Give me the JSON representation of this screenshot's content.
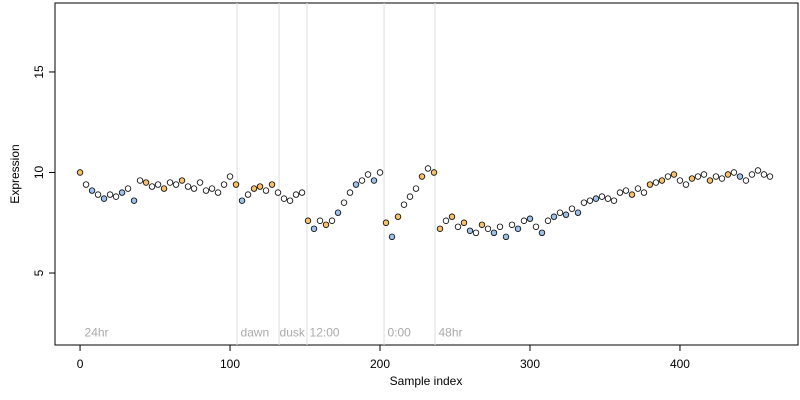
{
  "chart_data": {
    "type": "scatter",
    "x_label": "Sample index",
    "y_label": "Expression",
    "xlim": [
      -16.7,
      478.7
    ],
    "ylim": [
      1.42,
      18.43
    ],
    "xticks": [
      0,
      100,
      200,
      300,
      400
    ],
    "yticks": [
      5,
      10,
      15
    ],
    "vlines": [
      104.7,
      132.7,
      151.3,
      202.7,
      236.7
    ],
    "vline_color": "#dddddd",
    "annotation_y": 2.0,
    "annotations": [
      {
        "x": 3,
        "text": "24hr"
      },
      {
        "x": 107,
        "text": "dawn"
      },
      {
        "x": 133,
        "text": "dusk"
      },
      {
        "x": 153,
        "text": "12:00"
      },
      {
        "x": 205,
        "text": "0:00"
      },
      {
        "x": 239,
        "text": "48hr"
      }
    ],
    "x": [
      0,
      4,
      8,
      12,
      16,
      20,
      24,
      28,
      32,
      36,
      40,
      44,
      48,
      52,
      56,
      60,
      64,
      68,
      72,
      76,
      80,
      84,
      88,
      92,
      96,
      100,
      104,
      108,
      112,
      116,
      120,
      124,
      128,
      132,
      136,
      140,
      144,
      148,
      152,
      156,
      160,
      164,
      168,
      172,
      176,
      180,
      184,
      188,
      192,
      196,
      200,
      204,
      208,
      212,
      216,
      220,
      224,
      228,
      232,
      236,
      240,
      244,
      248,
      252,
      256,
      260,
      264,
      268,
      272,
      276,
      280,
      284,
      288,
      292,
      296,
      300,
      304,
      308,
      312,
      316,
      320,
      324,
      328,
      332,
      336,
      340,
      344,
      348,
      352,
      356,
      360,
      364,
      368,
      372,
      376,
      380,
      384,
      388,
      392,
      396,
      400,
      404,
      408,
      412,
      416,
      420,
      424,
      428,
      432,
      436,
      440,
      444,
      448,
      452,
      456,
      460
    ],
    "values": [
      10.0,
      9.4,
      9.1,
      8.9,
      8.7,
      8.9,
      8.8,
      9.0,
      9.2,
      8.6,
      9.6,
      9.5,
      9.3,
      9.4,
      9.2,
      9.5,
      9.4,
      9.6,
      9.3,
      9.2,
      9.5,
      9.1,
      9.2,
      9.0,
      9.4,
      9.8,
      9.4,
      8.6,
      8.9,
      9.2,
      9.3,
      9.1,
      9.4,
      9.0,
      8.7,
      8.6,
      8.9,
      9.0,
      7.6,
      7.2,
      7.6,
      7.4,
      7.6,
      8.0,
      8.5,
      9.0,
      9.4,
      9.6,
      9.9,
      9.6,
      10.0,
      7.5,
      6.8,
      7.8,
      8.4,
      8.8,
      9.2,
      9.8,
      10.2,
      10.0,
      7.2,
      7.6,
      7.8,
      7.3,
      7.5,
      7.1,
      7.0,
      7.4,
      7.2,
      7.0,
      7.3,
      6.8,
      7.4,
      7.2,
      7.6,
      7.7,
      7.3,
      7.0,
      7.6,
      7.8,
      8.0,
      7.9,
      8.2,
      8.0,
      8.5,
      8.6,
      8.7,
      8.8,
      8.7,
      8.6,
      9.0,
      9.1,
      8.9,
      9.2,
      9.0,
      9.4,
      9.5,
      9.6,
      9.8,
      9.9,
      9.6,
      9.4,
      9.7,
      9.8,
      9.9,
      9.6,
      9.8,
      9.7,
      9.9,
      10.0,
      9.8,
      9.6,
      9.9,
      10.1,
      9.9,
      9.8
    ],
    "point_colors": [
      "#f7c06a",
      "#ffffff",
      "#9ec1e8",
      "#ffffff",
      "#9ec1e8",
      "#ffffff",
      "#ffffff",
      "#9ec1e8",
      "#ffffff",
      "#9ec1e8",
      "#ffffff",
      "#f7c06a",
      "#ffffff",
      "#ffffff",
      "#f7c06a",
      "#ffffff",
      "#ffffff",
      "#f7c06a",
      "#ffffff",
      "#ffffff",
      "#ffffff",
      "#ffffff",
      "#ffffff",
      "#ffffff",
      "#ffffff",
      "#ffffff",
      "#f7c06a",
      "#9ec1e8",
      "#ffffff",
      "#f7c06a",
      "#f7c06a",
      "#ffffff",
      "#f7c06a",
      "#ffffff",
      "#ffffff",
      "#ffffff",
      "#ffffff",
      "#ffffff",
      "#f7c06a",
      "#9ec1e8",
      "#ffffff",
      "#f7c06a",
      "#ffffff",
      "#9ec1e8",
      "#ffffff",
      "#ffffff",
      "#9ec1e8",
      "#ffffff",
      "#ffffff",
      "#9ec1e8",
      "#ffffff",
      "#f7c06a",
      "#9ec1e8",
      "#f7c06a",
      "#ffffff",
      "#ffffff",
      "#ffffff",
      "#f7c06a",
      "#ffffff",
      "#f7c06a",
      "#f7c06a",
      "#ffffff",
      "#f7c06a",
      "#ffffff",
      "#f7c06a",
      "#9ec1e8",
      "#ffffff",
      "#f7c06a",
      "#ffffff",
      "#9ec1e8",
      "#ffffff",
      "#9ec1e8",
      "#ffffff",
      "#9ec1e8",
      "#ffffff",
      "#9ec1e8",
      "#ffffff",
      "#9ec1e8",
      "#ffffff",
      "#9ec1e8",
      "#ffffff",
      "#9ec1e8",
      "#ffffff",
      "#9ec1e8",
      "#ffffff",
      "#ffffff",
      "#9ec1e8",
      "#ffffff",
      "#ffffff",
      "#ffffff",
      "#ffffff",
      "#ffffff",
      "#f7c06a",
      "#ffffff",
      "#ffffff",
      "#f7c06a",
      "#ffffff",
      "#f7c06a",
      "#ffffff",
      "#f7c06a",
      "#ffffff",
      "#ffffff",
      "#f7c06a",
      "#ffffff",
      "#ffffff",
      "#f7c06a",
      "#ffffff",
      "#ffffff",
      "#f7c06a",
      "#ffffff",
      "#9ec1e8",
      "#ffffff",
      "#ffffff",
      "#ffffff",
      "#ffffff",
      "#ffffff"
    ]
  }
}
